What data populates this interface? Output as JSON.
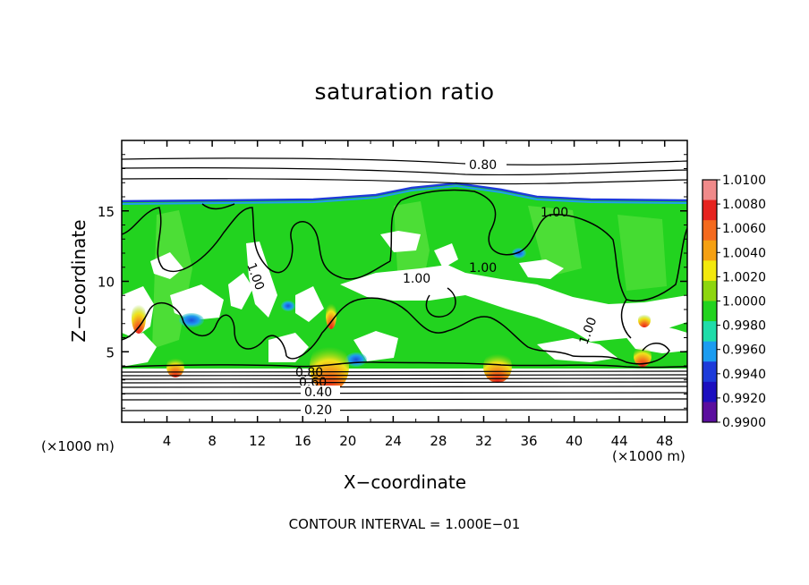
{
  "chart_data": {
    "type": "heatmap",
    "title": "saturation ratio",
    "xlabel": "X−coordinate",
    "ylabel": "Z−coordinate",
    "x_unit_label": "(×1000 m)",
    "x_ticks": [
      4,
      8,
      12,
      16,
      20,
      24,
      28,
      32,
      36,
      40,
      44,
      48
    ],
    "y_ticks": [
      5,
      10,
      15
    ],
    "xlim": [
      0,
      50
    ],
    "ylim": [
      0,
      20
    ],
    "colorbar": {
      "range": [
        0.99,
        1.01
      ],
      "labels": [
        "1.0100",
        "1.0080",
        "1.0060",
        "1.0040",
        "1.0020",
        "1.0000",
        "0.9980",
        "0.9960",
        "0.9940",
        "0.9920",
        "0.9900"
      ],
      "colors": [
        "#f08a8a",
        "#e6231f",
        "#f46a1e",
        "#f5a012",
        "#f3e90d",
        "#8dd60f",
        "#22d31f",
        "#1fdca9",
        "#1b9cf0",
        "#1d3bd9",
        "#1c0fbf",
        "#5b0e9e"
      ]
    },
    "contour_labels": [
      "0.80",
      "1.00",
      "1.00",
      "1.00",
      "1.00",
      "1.00",
      "0.80",
      "0.60",
      "0.40",
      "0.20"
    ],
    "contour_interval": "CONTOUR INTERVAL = 1.000E−01",
    "colors": {
      "field": "#22d31f",
      "field_light": "#54e43c",
      "subsaturated": "#ffffff",
      "contour": "#000000",
      "hot": "#f2581c",
      "cool": "#1f8ff0"
    }
  }
}
